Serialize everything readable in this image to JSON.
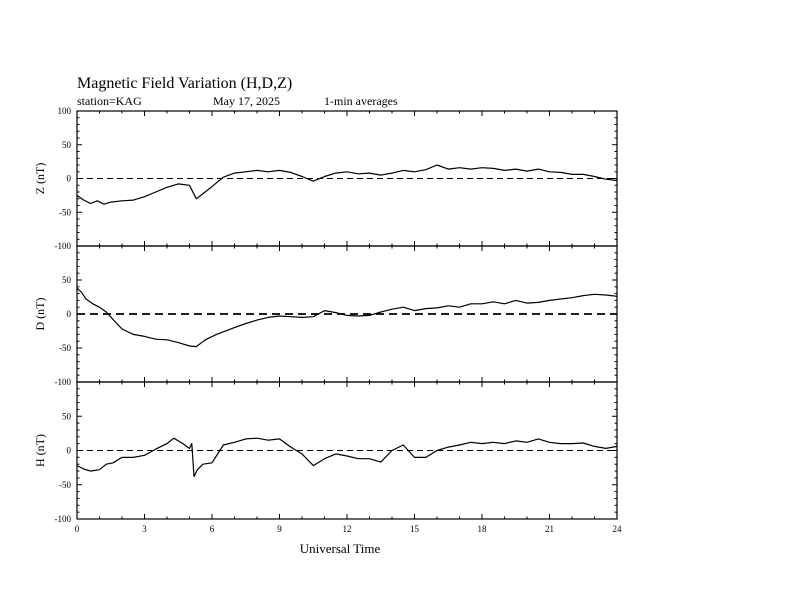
{
  "header": {
    "title": "Magnetic Field Variation (H,D,Z)",
    "station": "station=KAG",
    "date": "May 17, 2025",
    "averaging": "1-min averages"
  },
  "chart_data": [
    {
      "type": "line",
      "ylabel": "Z (nT)",
      "xlim": [
        0,
        24
      ],
      "ylim": [
        -100,
        100
      ],
      "yticks": [
        -100,
        -50,
        0,
        50,
        100
      ],
      "baseline": 0,
      "series": [
        {
          "x": [
            0,
            0.3,
            0.6,
            0.9,
            1.2,
            1.5,
            2,
            2.5,
            3,
            3.5,
            4,
            4.5,
            5,
            5.3,
            5.5,
            6,
            6.5,
            7,
            7.5,
            8,
            8.5,
            9,
            9.5,
            10,
            10.5,
            11,
            11.5,
            12,
            12.5,
            13,
            13.5,
            14,
            14.5,
            15,
            15.5,
            16,
            16.5,
            17,
            17.5,
            18,
            18.5,
            19,
            19.5,
            20,
            20.5,
            21,
            21.5,
            22,
            22.5,
            23,
            23.5,
            24
          ],
          "y": [
            -25,
            -32,
            -37,
            -33,
            -38,
            -35,
            -33,
            -32,
            -27,
            -20,
            -13,
            -8,
            -10,
            -30,
            -25,
            -12,
            2,
            8,
            10,
            12,
            10,
            12,
            9,
            3,
            -4,
            3,
            8,
            10,
            7,
            8,
            5,
            8,
            12,
            10,
            13,
            20,
            14,
            16,
            14,
            16,
            15,
            12,
            14,
            11,
            14,
            10,
            9,
            6,
            6,
            3,
            -1,
            -3
          ]
        }
      ]
    },
    {
      "type": "line",
      "ylabel": "D (nT)",
      "xlim": [
        0,
        24
      ],
      "ylim": [
        -100,
        100
      ],
      "yticks": [
        -100,
        -50,
        0,
        50,
        100
      ],
      "baseline": 0,
      "series": [
        {
          "x": [
            0,
            0.2,
            0.4,
            0.7,
            1,
            1.3,
            1.6,
            2,
            2.5,
            3,
            3.5,
            4,
            4.5,
            5,
            5.3,
            5.7,
            6.2,
            7,
            7.5,
            8,
            8.5,
            9,
            9.5,
            10,
            10.5,
            11,
            11.5,
            12,
            12.5,
            13,
            13.5,
            14,
            14.5,
            15,
            15.5,
            16,
            16.5,
            17,
            17.5,
            18,
            18.5,
            19,
            19.5,
            20,
            20.5,
            21,
            21.5,
            22,
            22.5,
            23,
            23.5,
            24
          ],
          "y": [
            38,
            32,
            22,
            15,
            10,
            3,
            -8,
            -22,
            -30,
            -33,
            -37,
            -38,
            -42,
            -47,
            -48,
            -38,
            -30,
            -20,
            -14,
            -9,
            -5,
            -3,
            -4,
            -5,
            -4,
            5,
            2,
            -2,
            -3,
            -2,
            3,
            7,
            10,
            5,
            8,
            9,
            12,
            10,
            15,
            15,
            18,
            15,
            20,
            16,
            17,
            20,
            22,
            24,
            27,
            29,
            28,
            26
          ]
        }
      ]
    },
    {
      "type": "line",
      "ylabel": "H (nT)",
      "xlim": [
        0,
        24
      ],
      "ylim": [
        -100,
        100
      ],
      "yticks": [
        -100,
        -50,
        0,
        50,
        100
      ],
      "baseline": 0,
      "series": [
        {
          "x": [
            0,
            0.3,
            0.6,
            1,
            1.3,
            1.6,
            2,
            2.5,
            3,
            3.5,
            4,
            4.3,
            4.7,
            5,
            5.1,
            5.2,
            5.35,
            5.6,
            6,
            6.5,
            7,
            7.5,
            8,
            8.5,
            9,
            9.5,
            10,
            10.5,
            11,
            11.5,
            12,
            12.5,
            13,
            13.5,
            14,
            14.5,
            15,
            15.5,
            16,
            16.5,
            17,
            17.5,
            18,
            18.5,
            19,
            19.5,
            20,
            20.5,
            21,
            21.5,
            22,
            22.5,
            23,
            23.5,
            24
          ],
          "y": [
            -22,
            -27,
            -30,
            -28,
            -20,
            -18,
            -10,
            -10,
            -7,
            2,
            10,
            18,
            10,
            3,
            10,
            -38,
            -28,
            -20,
            -18,
            8,
            12,
            17,
            18,
            15,
            17,
            5,
            -5,
            -22,
            -12,
            -5,
            -8,
            -12,
            -12,
            -17,
            0,
            8,
            -10,
            -10,
            0,
            5,
            8,
            12,
            10,
            12,
            10,
            14,
            12,
            17,
            12,
            10,
            10,
            11,
            6,
            3,
            6
          ]
        }
      ]
    }
  ],
  "x_axis": {
    "label": "Universal Time",
    "ticks": [
      0,
      3,
      6,
      9,
      12,
      15,
      18,
      21,
      24
    ]
  }
}
